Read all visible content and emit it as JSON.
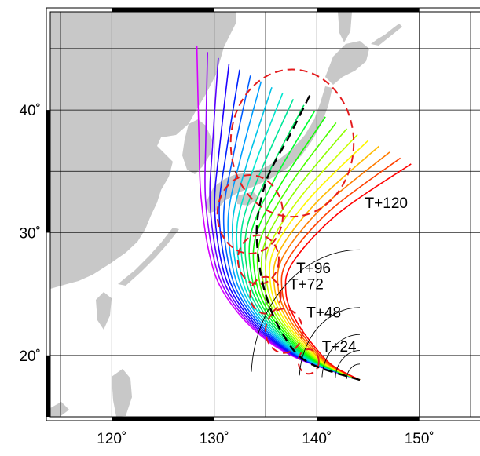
{
  "map": {
    "lon_range": [
      114,
      156
    ],
    "lat_range": [
      15,
      48
    ],
    "graticule": {
      "lon_lines": [
        115,
        120,
        125,
        130,
        135,
        140,
        145,
        150,
        155
      ],
      "lat_lines": [
        15,
        20,
        25,
        30,
        35,
        40,
        45
      ]
    },
    "colors": {
      "land": "#c8c8c8",
      "sea": "#ffffff",
      "frame_dark": "#000000",
      "circle": "#e41a1c",
      "mean_track": "#000000",
      "time_arc": "#000000"
    }
  },
  "axes": {
    "lat_ticks": [
      {
        "value": 40,
        "label": "40˚"
      },
      {
        "value": 30,
        "label": "30˚"
      },
      {
        "value": 20,
        "label": "20˚"
      }
    ],
    "lon_ticks": [
      {
        "value": 120,
        "label": "120˚"
      },
      {
        "value": 130,
        "label": "130˚"
      },
      {
        "value": 140,
        "label": "140˚"
      },
      {
        "value": 150,
        "label": "150˚"
      }
    ]
  },
  "forecast": {
    "origin": [
      144.2,
      18.0
    ],
    "ensemble_members": 21,
    "ensemble_color_order": "violet-to-red",
    "member_left": [
      [
        144.2,
        18.0
      ],
      [
        138.0,
        19.8
      ],
      [
        134.0,
        22.0
      ],
      [
        131.0,
        25.0
      ],
      [
        129.6,
        28.0
      ],
      [
        128.7,
        33.0
      ],
      [
        128.5,
        38.0
      ],
      [
        128.3,
        45.2
      ]
    ],
    "member_right": [
      [
        144.2,
        18.0
      ],
      [
        141.5,
        19.2
      ],
      [
        139.5,
        21.0
      ],
      [
        138.0,
        22.8
      ],
      [
        137.0,
        25.0
      ],
      [
        137.6,
        27.5
      ],
      [
        142.0,
        31.5
      ],
      [
        149.2,
        35.6
      ]
    ],
    "mean_track": [
      [
        144.2,
        18.0
      ],
      [
        139.0,
        19.5
      ],
      [
        136.5,
        22.0
      ],
      [
        135.0,
        25.0
      ],
      [
        134.3,
        28.0
      ],
      [
        134.2,
        31.0
      ],
      [
        135.2,
        34.5
      ],
      [
        137.4,
        38.0
      ],
      [
        139.5,
        41.5
      ]
    ],
    "lead_times": [
      {
        "label": "T+24",
        "center": [
          139.2,
          19.5
        ],
        "radius_deg": 1.0,
        "arc_radius_deg": 1.3,
        "label_pos": [
          140.5,
          20.3
        ]
      },
      {
        "label": "T+48",
        "center": [
          136.8,
          22.0
        ],
        "radius_deg": 1.8,
        "arc_radius_deg": 2.4,
        "label_pos": [
          139.0,
          23.1
        ]
      },
      {
        "label": "T+72",
        "center": [
          135.0,
          24.9
        ],
        "radius_deg": 1.5,
        "arc_radius_deg": 3.7,
        "label_pos": [
          137.3,
          25.4
        ]
      },
      {
        "label": "T+96",
        "center": [
          134.3,
          27.8
        ],
        "radius_deg": 2.0,
        "arc_radius_deg": 5.9,
        "label_pos": [
          138.0,
          26.7
        ]
      },
      {
        "label": "T+120",
        "center": [
          133.5,
          31.5
        ],
        "radius_deg": 3.2,
        "arc_radius_deg": 10.6,
        "label_pos": [
          144.7,
          32.0
        ]
      },
      {
        "label": "",
        "center": [
          137.6,
          37.3
        ],
        "radius_deg": 6.0,
        "arc_radius_deg": 0,
        "label_pos": [
          0,
          0
        ]
      }
    ]
  }
}
